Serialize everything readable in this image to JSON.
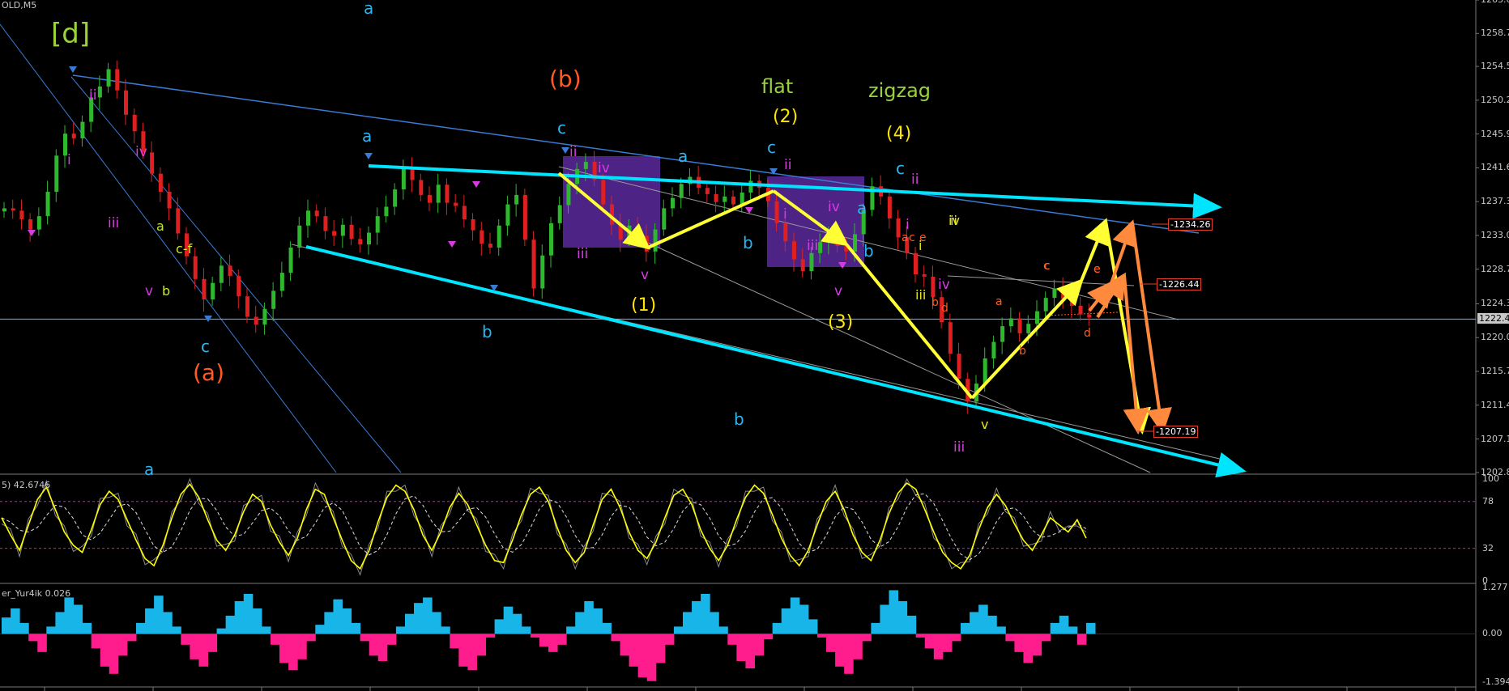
{
  "header": {
    "symbol_label": "OLD,M5"
  },
  "colors": {
    "background": "#000000",
    "up_candle": "#2eb82e",
    "down_candle": "#e02020",
    "channel_line": "#00e5ff",
    "trend_line": "#3a7bd5",
    "projection_yellow": "#ffff33",
    "projection_orange": "#ff8a3d",
    "box_fill": "#5b2a9c",
    "stoch_main": "#ffff00",
    "osc_positive": "#18b6e8",
    "osc_negative": "#ff1c8d"
  },
  "chart_data": [
    {
      "type": "line",
      "title": "",
      "ylim": [
        1202.88,
        1263.0
      ],
      "y_ticks": [
        "1263.0",
        "1258.75",
        "1254.55",
        "1250.25",
        "1245.95",
        "1241.65",
        "1237.35",
        "1233.05",
        "1228.75",
        "1224.35",
        "1220.05",
        "1215.75",
        "1211.45",
        "1207.15",
        "1202.88"
      ],
      "current_price": "1222.4",
      "price_labels": [
        "1234.26",
        "1226.44",
        "1207.19"
      ],
      "series": [
        {
          "values": [
            1236.5,
            1236.2,
            1235.1,
            1233.8,
            1235.5,
            1238.6,
            1243.2,
            1246.0,
            1245.4,
            1247.5,
            1250.6,
            1252.0,
            1254.2,
            1251.5,
            1248.4,
            1246.3,
            1243.6,
            1240.9,
            1238.6,
            1236.5,
            1233.3,
            1230.4,
            1227.5,
            1224.9,
            1227.0,
            1229.2,
            1227.9,
            1225.3,
            1222.7,
            1221.7,
            1223.7,
            1226.0,
            1228.3,
            1231.5,
            1234.3,
            1236.2,
            1235.5,
            1233.6,
            1233.0,
            1234.4,
            1232.6,
            1231.9,
            1233.4,
            1235.5,
            1236.7,
            1238.9,
            1241.6,
            1240.1,
            1238.2,
            1237.2,
            1239.5,
            1237.2,
            1236.8,
            1235.1,
            1233.7,
            1232.0,
            1231.5,
            1234.3,
            1237.0,
            1238.2,
            1232.5,
            1226.3,
            1230.5,
            1234.6,
            1236.9,
            1239.6,
            1241.5,
            1242.4,
            1240.1,
            1237.0,
            1234.4,
            1232.5,
            1234.3,
            1233.0,
            1231.0,
            1233.8,
            1236.5,
            1237.8,
            1239.6,
            1240.5,
            1239.1,
            1238.3,
            1237.3,
            1238.0,
            1237.0,
            1238.5,
            1240.0,
            1239.1,
            1237.4,
            1234.6,
            1232.3,
            1230.0,
            1228.5,
            1230.8,
            1232.2,
            1232.8,
            1231.7,
            1231.0,
            1233.2,
            1236.3,
            1239.3,
            1238.0,
            1235.2,
            1232.8,
            1230.8,
            1228.1,
            1227.8,
            1225.2,
            1222.0,
            1218.0,
            1214.8,
            1211.9,
            1214.2,
            1217.4,
            1219.5,
            1221.5,
            1222.5,
            1220.6,
            1221.8,
            1223.4,
            1225.1,
            1226.3,
            1225.0,
            1224.1,
            1223.0,
            1222.6
          ]
        }
      ],
      "channel_top": [
        [
          0.0,
          1254.0
        ],
        [
          1.0,
          1236.0
        ]
      ],
      "channel_bottom": [
        [
          0.0,
          1232.0
        ],
        [
          1.0,
          1203.0
        ]
      ]
    },
    {
      "type": "line",
      "title": "",
      "ylim": [
        0,
        100
      ],
      "y_ticks": [
        "100",
        "78",
        "32",
        "0"
      ],
      "legend_label": "5) 42.6746",
      "levels": [
        78,
        32
      ],
      "series": [
        {
          "values": [
            62,
            45,
            30,
            55,
            80,
            92,
            70,
            48,
            35,
            28,
            50,
            75,
            88,
            80,
            60,
            40,
            22,
            15,
            35,
            62,
            85,
            95,
            82,
            60,
            40,
            30,
            45,
            68,
            85,
            78,
            55,
            38,
            25,
            42,
            70,
            90,
            85,
            62,
            40,
            20,
            12,
            30,
            58,
            82,
            94,
            88,
            70,
            45,
            30,
            48,
            72,
            86,
            75,
            55,
            35,
            20,
            18,
            40,
            65,
            85,
            92,
            78,
            52,
            30,
            18,
            28,
            55,
            80,
            90,
            72,
            48,
            30,
            22,
            38,
            62,
            84,
            90,
            75,
            50,
            32,
            20,
            35,
            60,
            82,
            94,
            86,
            65,
            42,
            25,
            15,
            30,
            55,
            78,
            88,
            70,
            45,
            28,
            20,
            40,
            66,
            86,
            96,
            90,
            70,
            48,
            28,
            18,
            12,
            25,
            50,
            72,
            85,
            74,
            56,
            40,
            30,
            45,
            62,
            55,
            48,
            60,
            42
          ]
        }
      ]
    },
    {
      "type": "bar",
      "title": "",
      "ylim": [
        -1.394,
        1.277
      ],
      "y_ticks": [
        "1.277",
        "0.00",
        "-1.394"
      ],
      "legend_label": "er_Yur4ik 0.026",
      "series": [
        {
          "values": [
            0.45,
            0.7,
            0.3,
            -0.2,
            -0.5,
            0.2,
            0.6,
            1.0,
            0.8,
            0.3,
            -0.4,
            -0.9,
            -1.1,
            -0.6,
            -0.2,
            0.3,
            0.7,
            1.05,
            0.6,
            0.2,
            -0.3,
            -0.7,
            -0.9,
            -0.5,
            0.15,
            0.5,
            0.9,
            1.1,
            0.7,
            0.2,
            -0.3,
            -0.8,
            -1.0,
            -0.7,
            -0.2,
            0.25,
            0.6,
            0.95,
            0.7,
            0.3,
            -0.2,
            -0.6,
            -0.75,
            -0.3,
            0.2,
            0.55,
            0.85,
            1.0,
            0.6,
            0.2,
            -0.4,
            -0.9,
            -1.0,
            -0.6,
            -0.1,
            0.4,
            0.75,
            0.55,
            0.2,
            -0.1,
            -0.35,
            -0.5,
            -0.3,
            0.2,
            0.6,
            0.9,
            0.7,
            0.3,
            -0.2,
            -0.6,
            -0.9,
            -1.2,
            -1.3,
            -0.8,
            -0.3,
            0.2,
            0.6,
            0.9,
            1.1,
            0.6,
            0.2,
            -0.3,
            -0.75,
            -0.95,
            -0.6,
            -0.15,
            0.3,
            0.7,
            1.0,
            0.8,
            0.4,
            -0.1,
            -0.5,
            -0.9,
            -1.1,
            -0.7,
            -0.2,
            0.3,
            0.8,
            1.2,
            0.9,
            0.5,
            -0.1,
            -0.4,
            -0.7,
            -0.5,
            -0.2,
            0.3,
            0.6,
            0.8,
            0.5,
            0.2,
            -0.2,
            -0.5,
            -0.8,
            -0.6,
            -0.2,
            0.3,
            0.5,
            0.2,
            -0.3,
            0.3
          ]
        }
      ]
    }
  ],
  "wave_labels": [
    {
      "text": "[d]",
      "color": "#9bd23c",
      "size": 34
    },
    {
      "text": "(b)",
      "color": "#ff5a1f",
      "size": 28
    },
    {
      "text": "(a)",
      "color": "#ff5a1f",
      "size": 28
    },
    {
      "text": "flat",
      "color": "#9bd23c",
      "size": 24
    },
    {
      "text": "zigzag",
      "color": "#9bd23c",
      "size": 24
    },
    {
      "text": "(1)",
      "color": "#ffe600",
      "size": 22
    },
    {
      "text": "(2)",
      "color": "#ffe600",
      "size": 22
    },
    {
      "text": "(3)",
      "color": "#ffe600",
      "size": 22
    },
    {
      "text": "(4)",
      "color": "#ffe600",
      "size": 22
    },
    {
      "text": "a",
      "color": "#2db5f0",
      "size": 20
    },
    {
      "text": "b",
      "color": "#2db5f0",
      "size": 20
    },
    {
      "text": "c",
      "color": "#2db5f0",
      "size": 20
    },
    {
      "text": "a",
      "color": "#2db5f0",
      "size": 20
    },
    {
      "text": "b",
      "color": "#2db5f0",
      "size": 20
    },
    {
      "text": "c",
      "color": "#2db5f0",
      "size": 20
    },
    {
      "text": "a",
      "color": "#2db5f0",
      "size": 20
    },
    {
      "text": "b",
      "color": "#2db5f0",
      "size": 20
    },
    {
      "text": "c",
      "color": "#2db5f0",
      "size": 20
    },
    {
      "text": "a",
      "color": "#2db5f0",
      "size": 20
    },
    {
      "text": "b",
      "color": "#2db5f0",
      "size": 20
    },
    {
      "text": "c",
      "color": "#2db5f0",
      "size": 20
    },
    {
      "text": "a",
      "color": "#2db5f0",
      "size": 20
    },
    {
      "text": "b",
      "color": "#2db5f0",
      "size": 20
    },
    {
      "text": "c",
      "color": "#2db5f0",
      "size": 20
    },
    {
      "text": "i",
      "color": "#d63ce0",
      "size": 17
    },
    {
      "text": "ii",
      "color": "#d63ce0",
      "size": 17
    },
    {
      "text": "iii",
      "color": "#d63ce0",
      "size": 17
    },
    {
      "text": "iv",
      "color": "#d63ce0",
      "size": 17
    },
    {
      "text": "v",
      "color": "#d63ce0",
      "size": 17
    },
    {
      "text": "ii",
      "color": "#d63ce0",
      "size": 17
    },
    {
      "text": "iii",
      "color": "#d63ce0",
      "size": 17
    },
    {
      "text": "iv",
      "color": "#d63ce0",
      "size": 17
    },
    {
      "text": "v",
      "color": "#d63ce0",
      "size": 17
    },
    {
      "text": "ii",
      "color": "#d63ce0",
      "size": 17
    },
    {
      "text": "i",
      "color": "#d63ce0",
      "size": 17
    },
    {
      "text": "iii",
      "color": "#d63ce0",
      "size": 17
    },
    {
      "text": "iv",
      "color": "#d63ce0",
      "size": 17
    },
    {
      "text": "v",
      "color": "#d63ce0",
      "size": 17
    },
    {
      "text": "ii",
      "color": "#d63ce0",
      "size": 17
    },
    {
      "text": "i",
      "color": "#d63ce0",
      "size": 17
    },
    {
      "text": "iii",
      "color": "#d63ce0",
      "size": 17
    },
    {
      "text": "iv",
      "color": "#d63ce0",
      "size": 17
    },
    {
      "text": "a",
      "color": "#c8e632",
      "size": 16
    },
    {
      "text": "b",
      "color": "#c8e632",
      "size": 16
    },
    {
      "text": "c-f",
      "color": "#c8e632",
      "size": 16
    },
    {
      "text": "i",
      "color": "#e8e80a",
      "size": 16
    },
    {
      "text": "ii",
      "color": "#e8e80a",
      "size": 16
    },
    {
      "text": "iii",
      "color": "#e8e80a",
      "size": 16
    },
    {
      "text": "iv",
      "color": "#e8e80a",
      "size": 16
    },
    {
      "text": "v",
      "color": "#e8e80a",
      "size": 16
    },
    {
      "text": "a",
      "color": "#ff5a1f",
      "size": 14
    },
    {
      "text": "b",
      "color": "#ff5a1f",
      "size": 14
    },
    {
      "text": "c",
      "color": "#ff5a1f",
      "size": 14
    },
    {
      "text": "d",
      "color": "#ff5a1f",
      "size": 14
    },
    {
      "text": "e",
      "color": "#ff5a1f",
      "size": 14
    },
    {
      "text": "a",
      "color": "#ff5a1f",
      "size": 14
    },
    {
      "text": "b",
      "color": "#ff5a1f",
      "size": 14
    },
    {
      "text": "c",
      "color": "#ff5a1f",
      "size": 14
    },
    {
      "text": "d",
      "color": "#ff5a1f",
      "size": 14
    },
    {
      "text": "e",
      "color": "#ff5a1f",
      "size": 14
    },
    {
      "text": "c",
      "color": "#ff5a1f",
      "size": 14
    },
    {
      "text": "e",
      "color": "#ff5a1f",
      "size": 14
    }
  ]
}
